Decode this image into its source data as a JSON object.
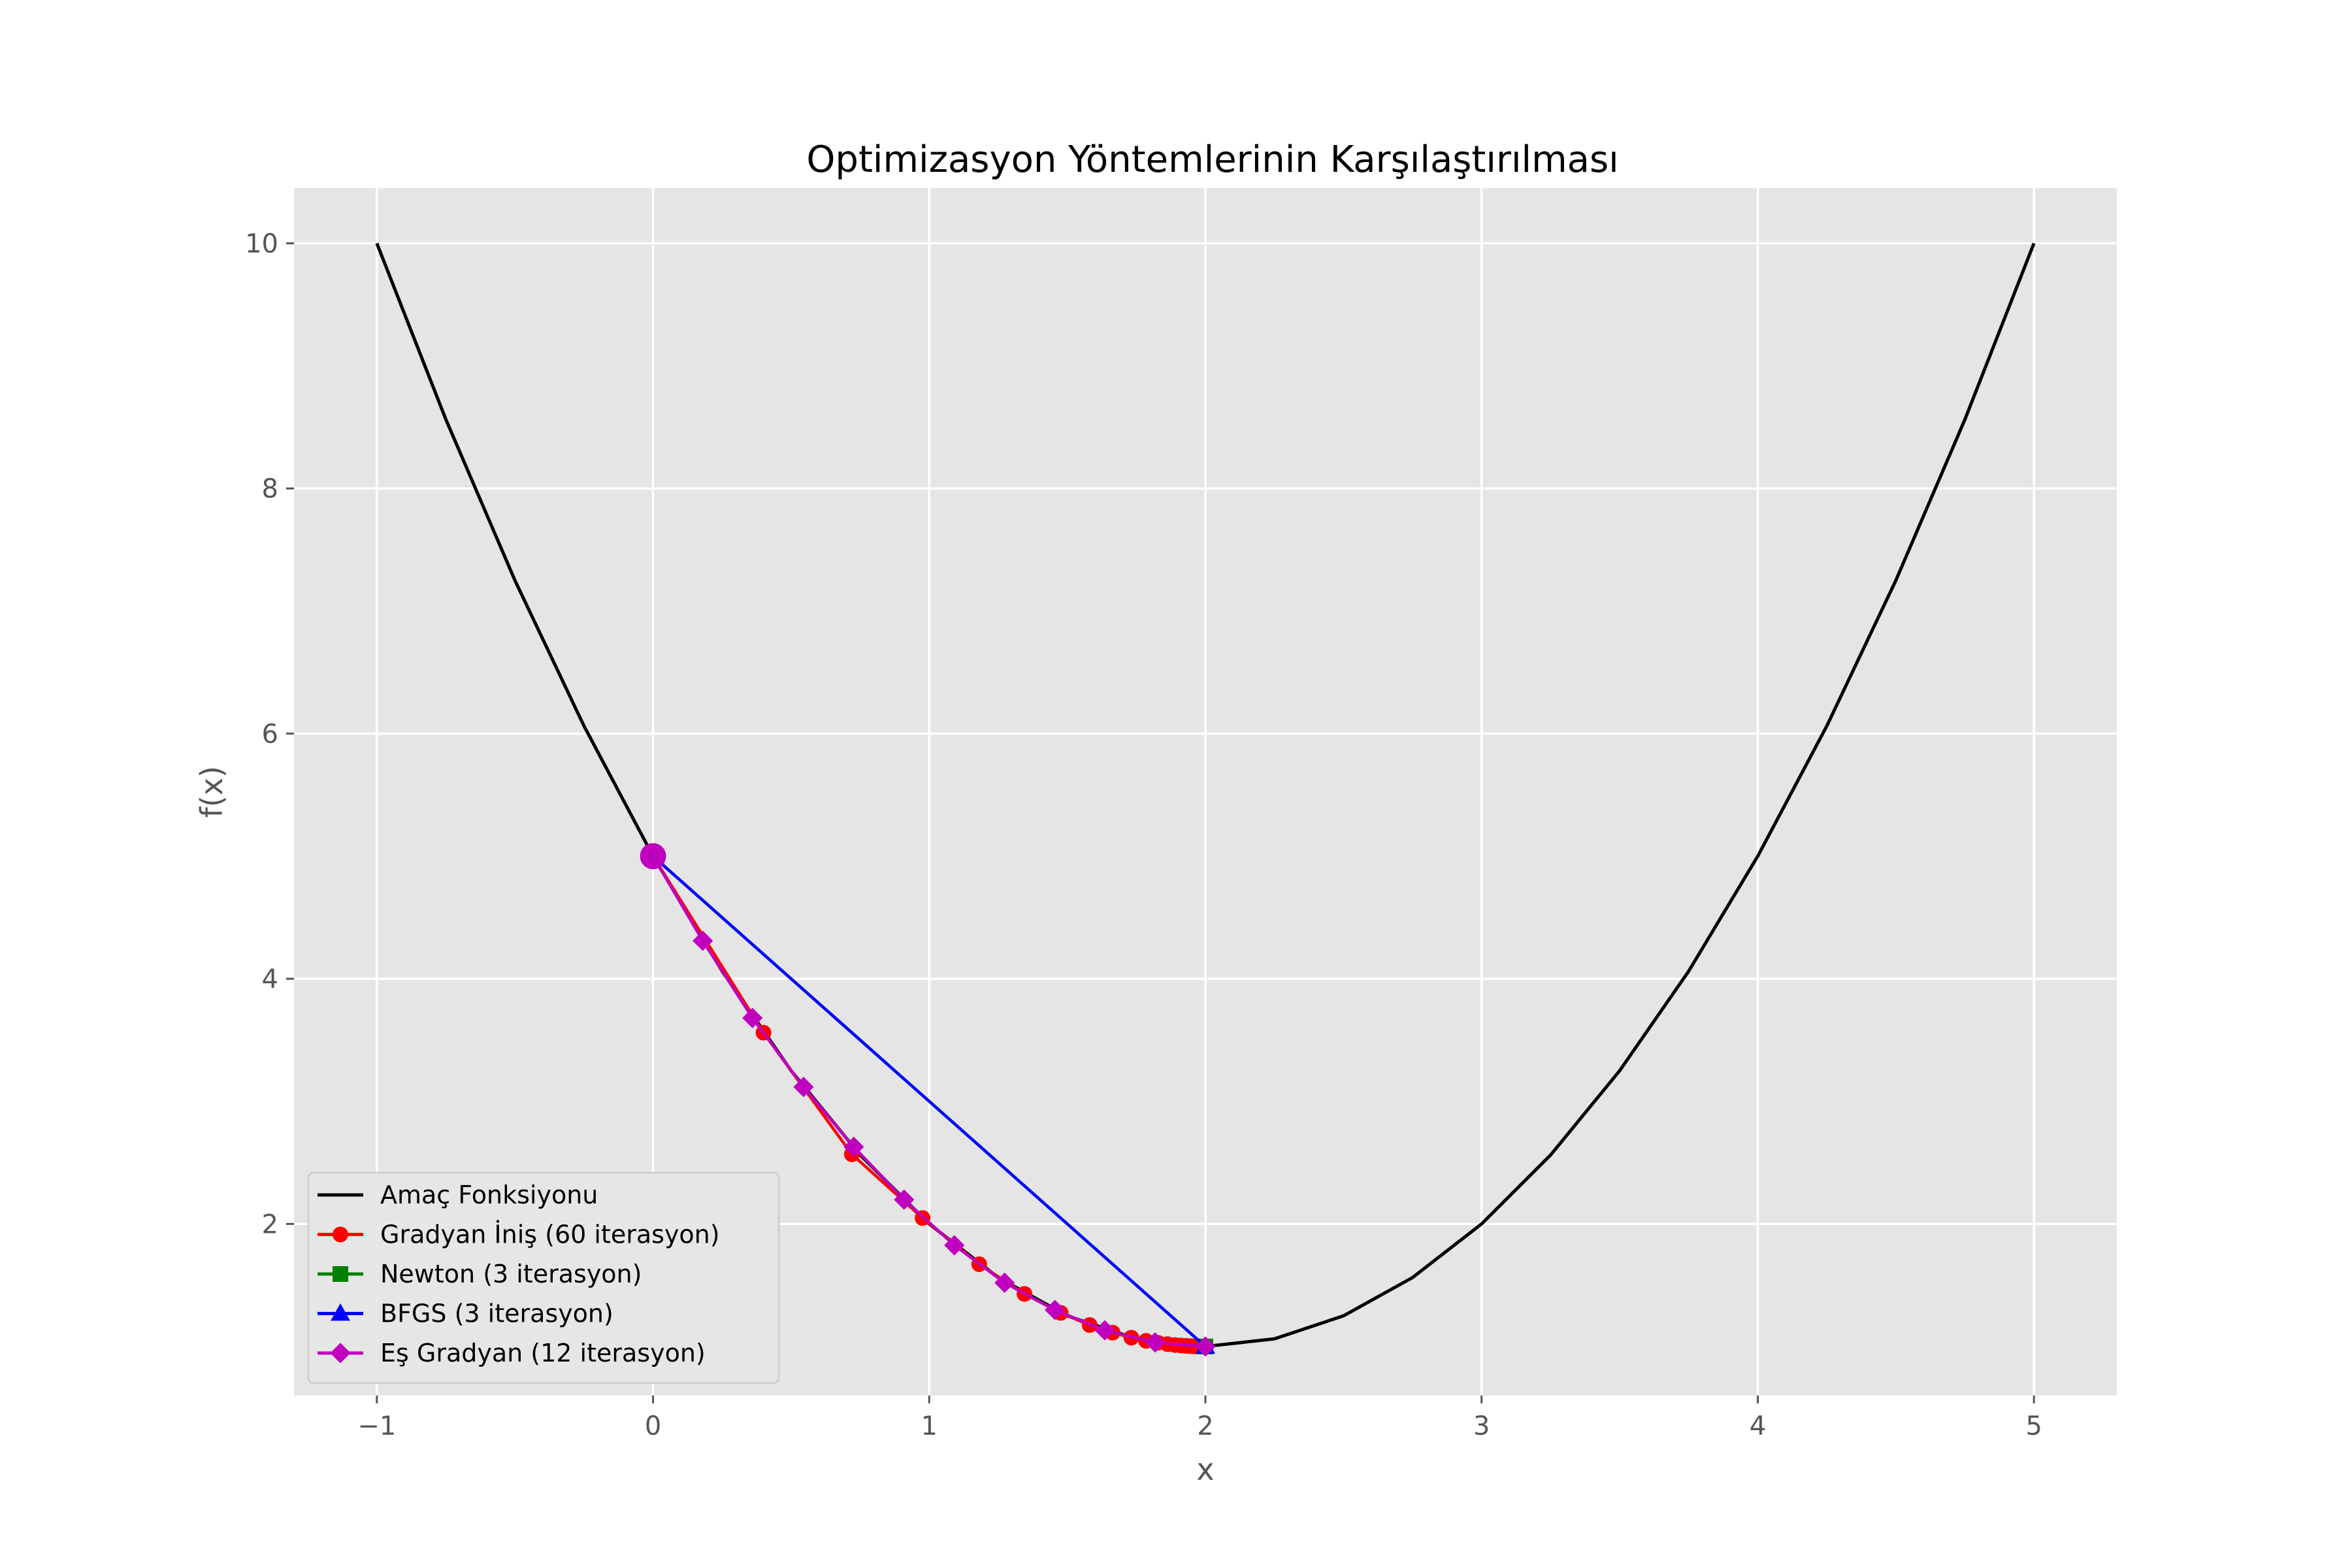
{
  "chart_data": {
    "type": "line",
    "title": "Optimizasyon Yöntemlerinin Karşılaştırılması",
    "xlabel": "x",
    "ylabel": "f(x)",
    "xlim": [
      -1.3,
      5.3
    ],
    "ylim": [
      0.6,
      10.45
    ],
    "xticks": [
      -1,
      0,
      1,
      2,
      3,
      4,
      5
    ],
    "xtick_labels": [
      "−1",
      "0",
      "1",
      "2",
      "3",
      "4",
      "5"
    ],
    "yticks": [
      2,
      4,
      6,
      8,
      10
    ],
    "ytick_labels": [
      "2",
      "4",
      "6",
      "8",
      "10"
    ],
    "grid": true,
    "legend_position": "lower-left",
    "background_color": "#e5e5e5",
    "start_point": {
      "x": 0,
      "y": 5,
      "color": "#bf00bf"
    },
    "series": [
      {
        "name": "Amaç Fonksiyonu",
        "color": "#000000",
        "marker": "none",
        "x": [
          -1.0,
          -0.75,
          -0.5,
          -0.25,
          0.0,
          0.25,
          0.5,
          0.75,
          1.0,
          1.25,
          1.5,
          1.75,
          2.0,
          2.25,
          2.5,
          2.75,
          3.0,
          3.25,
          3.5,
          3.75,
          4.0,
          4.25,
          4.5,
          4.75,
          5.0
        ],
        "y": [
          10.0,
          8.5625,
          7.25,
          6.0625,
          5.0,
          4.0625,
          3.25,
          2.5625,
          2.0,
          1.5625,
          1.25,
          1.0625,
          1.0,
          1.0625,
          1.25,
          1.5625,
          2.0,
          2.5625,
          3.25,
          4.0625,
          5.0,
          6.0625,
          7.25,
          8.5625,
          10.0
        ]
      },
      {
        "name": "Gradyan İniş (60 iterasyon)",
        "color": "#ff0000",
        "marker": "circle",
        "x": [
          0.0,
          0.4,
          0.72,
          0.976,
          1.181,
          1.345,
          1.476,
          1.581,
          1.664,
          1.732,
          1.785,
          1.828,
          1.863,
          1.89,
          1.912,
          1.93,
          1.944,
          1.955,
          1.964,
          1.971,
          1.977,
          1.982,
          1.986,
          1.989,
          1.991,
          2.0
        ],
        "y": [
          5.0,
          3.56,
          2.568,
          2.048,
          1.671,
          1.429,
          1.274,
          1.175,
          1.113,
          1.072,
          1.046,
          1.03,
          1.019,
          1.012,
          1.008,
          1.005,
          1.003,
          1.002,
          1.001,
          1.001,
          1.001,
          1.0,
          1.0,
          1.0,
          1.0,
          1.0
        ]
      },
      {
        "name": "Newton (3 iterasyon)",
        "color": "#008000",
        "marker": "square",
        "x": [
          0.0,
          2.0,
          2.0
        ],
        "y": [
          5.0,
          1.0,
          1.0
        ]
      },
      {
        "name": "BFGS (3 iterasyon)",
        "color": "#0000ff",
        "marker": "triangle",
        "x": [
          0.0,
          2.0,
          2.0
        ],
        "y": [
          5.0,
          1.0,
          1.0
        ]
      },
      {
        "name": "Eş Gradyan (12 iterasyon)",
        "color": "#bf00bf",
        "marker": "diamond",
        "x": [
          0.0,
          0.18,
          0.36,
          0.545,
          0.727,
          0.909,
          1.091,
          1.273,
          1.455,
          1.636,
          1.818,
          2.0
        ],
        "y": [
          5.0,
          4.31,
          3.68,
          3.117,
          2.628,
          2.198,
          1.826,
          1.52,
          1.298,
          1.132,
          1.033,
          1.0
        ]
      }
    ]
  }
}
